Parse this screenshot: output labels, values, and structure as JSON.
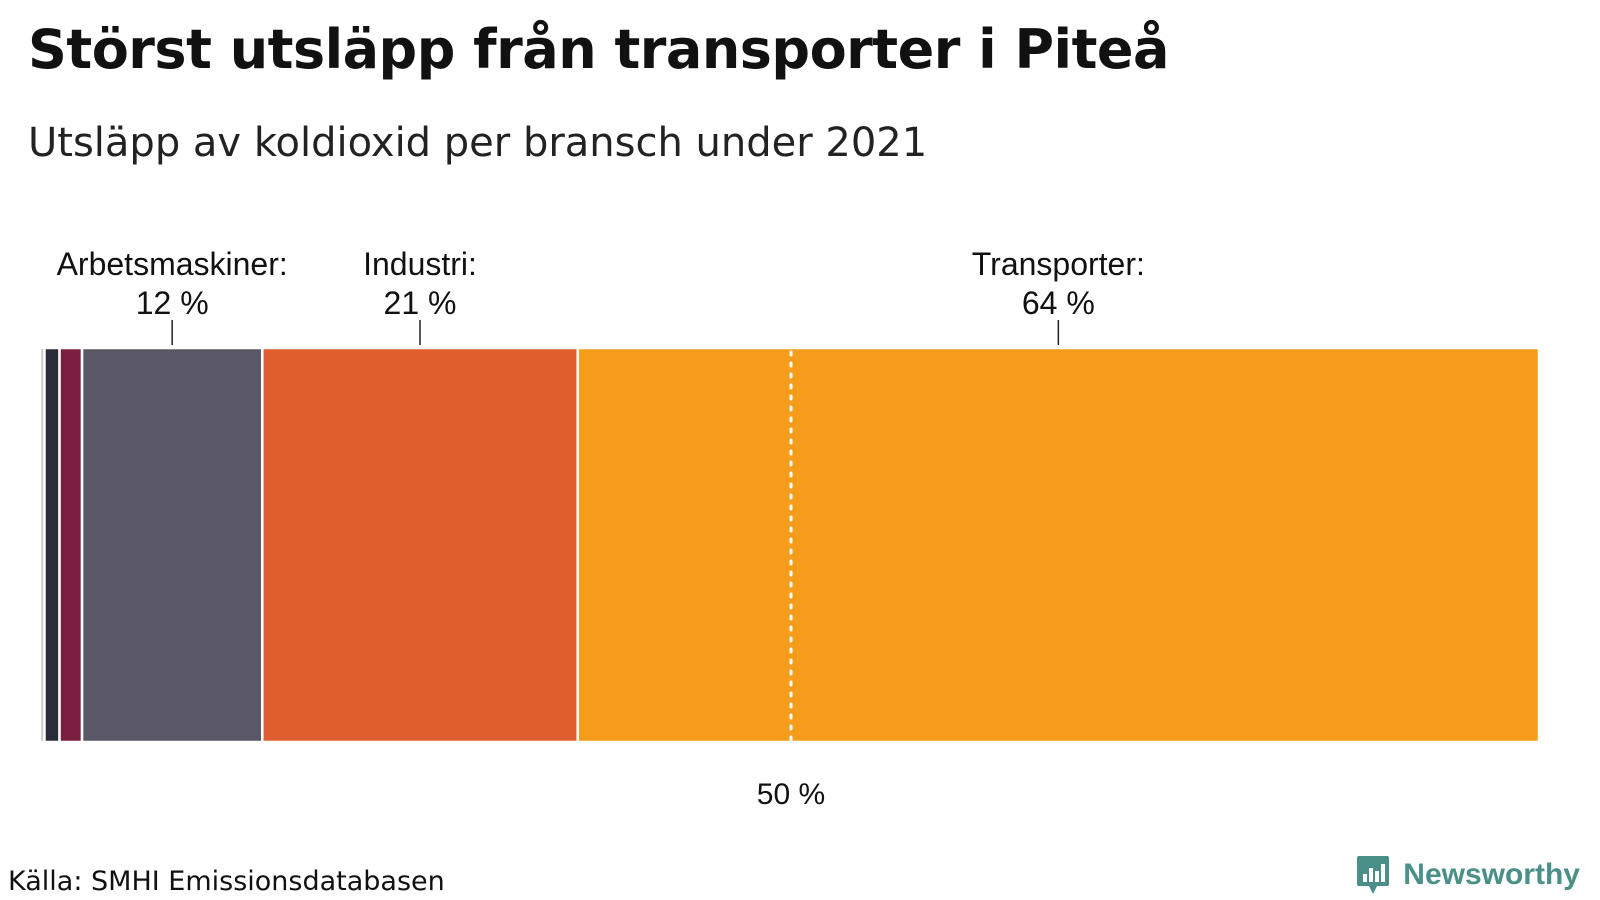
{
  "title": "Störst utsläpp från transporter i Piteå",
  "subtitle": "Utsläpp av koldioxid per bransch under 2021",
  "source": "Källa: SMHI Emissionsdatabasen",
  "brand": {
    "name": "Newsworthy",
    "color": "#4a8f88",
    "icon": "bar-chart-badge-icon"
  },
  "chart_data": {
    "type": "bar",
    "orientation": "horizontal-stacked-100",
    "title": "Störst utsläpp från transporter i Piteå",
    "subtitle": "Utsläpp av koldioxid per bransch under 2021",
    "unit": "%",
    "reference_line": {
      "value": 50,
      "label": "50 %",
      "style": "dotted"
    },
    "segments": [
      {
        "value": 0.3,
        "color": "#c8c8cc"
      },
      {
        "value": 1.0,
        "color": "#2b2b3a"
      },
      {
        "value": 1.5,
        "color": "#7a1f3f"
      },
      {
        "name": "Arbetsmaskiner",
        "value": 12,
        "label": "Arbetsmaskiner:",
        "value_label": "12 %",
        "color": "#5a5866"
      },
      {
        "name": "Industri",
        "value": 21,
        "label": "Industri:",
        "value_label": "21 %",
        "color": "#e05e2e"
      },
      {
        "name": "Transporter",
        "value": 64,
        "label": "Transporter:",
        "value_label": "64 %",
        "color": "#f59d1a"
      }
    ],
    "xlim": [
      0,
      100
    ]
  }
}
